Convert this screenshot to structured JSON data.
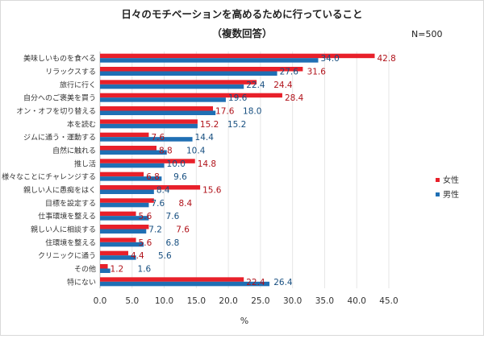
{
  "chart_data": {
    "type": "bar",
    "orientation": "horizontal",
    "title": "日々のモチベーションを高めるために行っていること",
    "subtitle": "（複数回答）",
    "note": "N=500",
    "xlabel": "%",
    "ylabel": "",
    "xlim": [
      0,
      45
    ],
    "xticks": [
      "0.0",
      "5.0",
      "10.0",
      "15.0",
      "20.0",
      "25.0",
      "30.0",
      "35.0",
      "40.0",
      "45.0"
    ],
    "grid": true,
    "legend": "right",
    "categories": [
      "美味しいものを食べる",
      "リラックスする",
      "旅行に行く",
      "自分へのご褒美を買う",
      "オン・オフを切り替える",
      "本を読む",
      "ジムに通う・運動する",
      "自然に触れる",
      "推し活",
      "様々なことにチャレンジする",
      "親しい人に愚痴をはく",
      "目標を設定する",
      "仕事環境を整える",
      "親しい人に相談する",
      "住環境を整える",
      "クリニックに通う",
      "その他",
      "特にない"
    ],
    "series": [
      {
        "name": "女性",
        "color": "#e8202a",
        "values": [
          42.8,
          31.6,
          24.4,
          28.4,
          17.6,
          15.2,
          7.6,
          8.8,
          14.8,
          6.8,
          15.6,
          8.4,
          5.6,
          7.6,
          5.6,
          4.4,
          1.2,
          22.4
        ]
      },
      {
        "name": "男性",
        "color": "#1f6fb4",
        "values": [
          34.0,
          27.6,
          22.4,
          19.6,
          18.0,
          15.2,
          14.4,
          10.4,
          10.0,
          9.6,
          8.4,
          7.6,
          7.6,
          7.2,
          6.8,
          5.6,
          1.6,
          26.4
        ]
      }
    ]
  }
}
